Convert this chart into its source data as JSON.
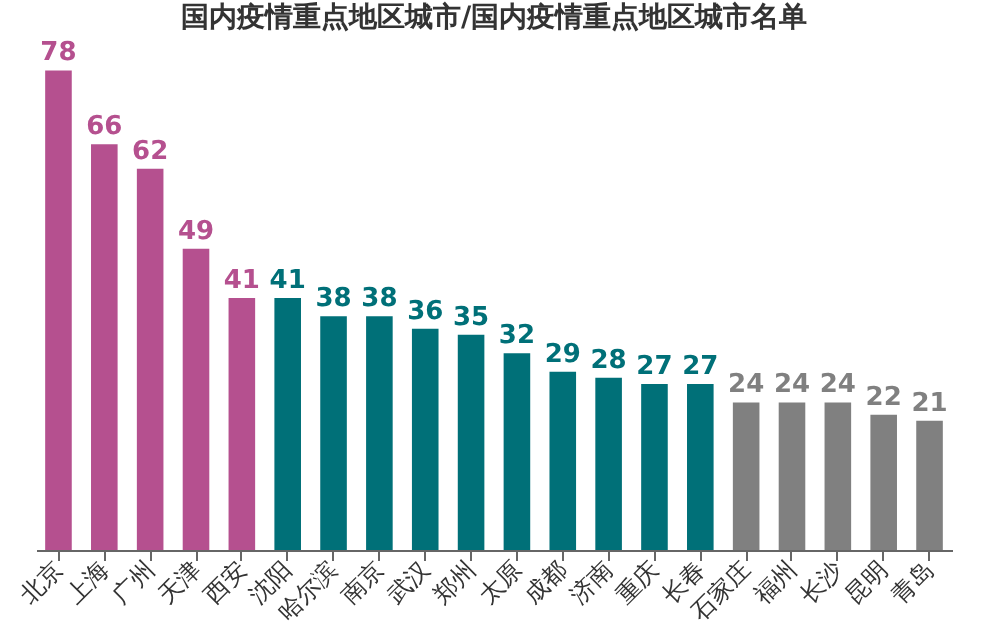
{
  "chart_data": {
    "type": "bar",
    "title": "国内疫情重点地区城市/国内疫情重点地区城市名单",
    "categories": [
      "北京",
      "上海",
      "广州",
      "天津",
      "西安",
      "沈阳",
      "哈尔滨",
      "南京",
      "武汉",
      "郑州",
      "太原",
      "成都",
      "济南",
      "重庆",
      "长春",
      "石家庄",
      "福州",
      "长沙",
      "昆明",
      "青岛"
    ],
    "values": [
      78,
      66,
      62,
      49,
      41,
      41,
      38,
      38,
      36,
      35,
      32,
      29,
      28,
      27,
      27,
      24,
      24,
      24,
      22,
      21
    ],
    "colors": [
      "#b5508f",
      "#b5508f",
      "#b5508f",
      "#b5508f",
      "#b5508f",
      "#007078",
      "#007078",
      "#007078",
      "#007078",
      "#007078",
      "#007078",
      "#007078",
      "#007078",
      "#007078",
      "#007078",
      "#808080",
      "#808080",
      "#808080",
      "#808080",
      "#808080"
    ],
    "data_labels": true
  }
}
